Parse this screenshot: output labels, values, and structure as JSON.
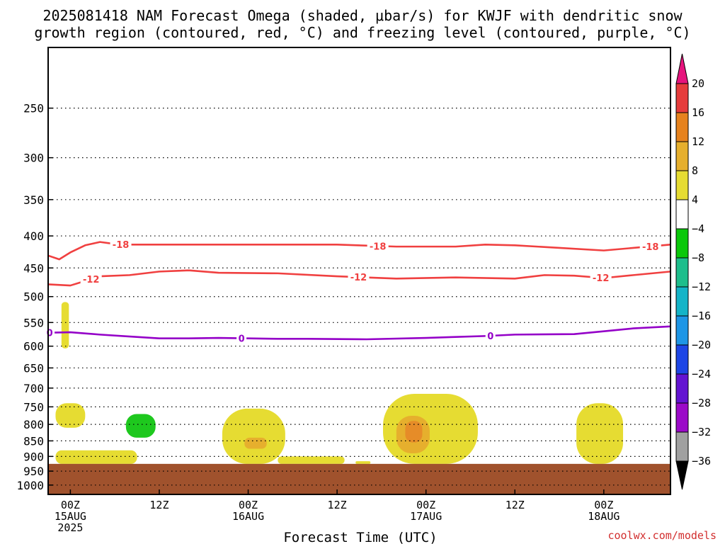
{
  "title_line1": "2025081418 NAM Forecast Omega (shaded, μbar/s) for KWJF with dendritic snow",
  "title_line2": "growth region (contoured, red, °C) and freezing level (contoured, purple, °C)",
  "xlabel": "Forecast Time (UTC)",
  "credit": "coolwx.com/models",
  "colors": {
    "ground": "#a0522d",
    "dgz": "#f04040",
    "freezing": "#9400c8",
    "yellow": "#e6dc32",
    "gold": "#e6af2d",
    "orange": "#e68c28",
    "green": "#1ec81e"
  },
  "chart_data": {
    "type": "time-height cross-section",
    "x_ticks": [
      {
        "hour": 0,
        "lines": [
          "00Z",
          "15AUG",
          "2025"
        ]
      },
      {
        "hour": 12,
        "lines": [
          "12Z"
        ]
      },
      {
        "hour": 24,
        "lines": [
          "00Z",
          "16AUG"
        ]
      },
      {
        "hour": 36,
        "lines": [
          "12Z"
        ]
      },
      {
        "hour": 48,
        "lines": [
          "00Z",
          "17AUG"
        ]
      },
      {
        "hour": 60,
        "lines": [
          "12Z"
        ]
      },
      {
        "hour": 72,
        "lines": [
          "00Z",
          "18AUG"
        ]
      }
    ],
    "xlim_hours": [
      -3,
      81
    ],
    "y_ticks_hPa": [
      250,
      300,
      350,
      400,
      450,
      500,
      550,
      600,
      650,
      700,
      750,
      800,
      850,
      900,
      950,
      1000
    ],
    "ylim_hPa": [
      200,
      1035
    ],
    "y_scale": "log-pressure",
    "grid": "dotted",
    "surface_pressure_hPa": 925,
    "colorbar": {
      "ticks": [
        "20",
        "16",
        "12",
        "8",
        "4",
        "−4",
        "−8",
        "−12",
        "−16",
        "−20",
        "−24",
        "−28",
        "−32",
        "−36"
      ],
      "bins": [
        {
          "color": "#e63c3c"
        },
        {
          "color": "#e6821e"
        },
        {
          "color": "#e6af2d"
        },
        {
          "color": "#e6dc32"
        },
        {
          "color": "#ffffff"
        },
        {
          "color": "#0ac80a"
        },
        {
          "color": "#1ebe8c"
        },
        {
          "color": "#14b4c8"
        },
        {
          "color": "#1e96e6"
        },
        {
          "color": "#1e46e6"
        },
        {
          "color": "#6414d2"
        },
        {
          "color": "#9b0ac8"
        },
        {
          "color": "#a0a0a0"
        }
      ],
      "max_extend_color": "#e6147d",
      "min_extend_color": "#000000"
    },
    "contours": [
      {
        "label": "-18",
        "color_key": "dgz",
        "label_hours": [
          6.8,
          41.5,
          78.3
        ],
        "points": [
          [
            -3,
            430
          ],
          [
            -1.5,
            436
          ],
          [
            0,
            425
          ],
          [
            2,
            414
          ],
          [
            4,
            409
          ],
          [
            6,
            412
          ],
          [
            8,
            413
          ],
          [
            12,
            413
          ],
          [
            20,
            413
          ],
          [
            28,
            413
          ],
          [
            36,
            413
          ],
          [
            44,
            416
          ],
          [
            52,
            416
          ],
          [
            56,
            413
          ],
          [
            60,
            414
          ],
          [
            66,
            418
          ],
          [
            72,
            422
          ],
          [
            76,
            418
          ],
          [
            81,
            413
          ]
        ]
      },
      {
        "label": "-12",
        "color_key": "dgz",
        "label_hours": [
          2.8,
          38.9,
          71.6
        ],
        "points": [
          [
            -3,
            478
          ],
          [
            0,
            480
          ],
          [
            2,
            472
          ],
          [
            4,
            464
          ],
          [
            8,
            462
          ],
          [
            12,
            456
          ],
          [
            16,
            454
          ],
          [
            20,
            458
          ],
          [
            28,
            459
          ],
          [
            36,
            464
          ],
          [
            44,
            468
          ],
          [
            52,
            466
          ],
          [
            60,
            468
          ],
          [
            64,
            462
          ],
          [
            68,
            463
          ],
          [
            72,
            467
          ],
          [
            76,
            462
          ],
          [
            81,
            456
          ]
        ]
      },
      {
        "label": "0",
        "color_key": "freezing",
        "label_hours": [
          -2.8,
          23.1,
          56.7
        ],
        "points": [
          [
            -3,
            571
          ],
          [
            0,
            570
          ],
          [
            4,
            575
          ],
          [
            8,
            579
          ],
          [
            12,
            583
          ],
          [
            16,
            583
          ],
          [
            20,
            582
          ],
          [
            24,
            583
          ],
          [
            28,
            584
          ],
          [
            32,
            584
          ],
          [
            40,
            585
          ],
          [
            48,
            582
          ],
          [
            52,
            580
          ],
          [
            56,
            578
          ],
          [
            60,
            575
          ],
          [
            68,
            574
          ],
          [
            72,
            568
          ],
          [
            76,
            562
          ],
          [
            81,
            558
          ]
        ]
      }
    ],
    "shaded_regions": [
      {
        "color_key": "yellow",
        "hour_range": [
          -1.2,
          -0.2
        ],
        "hPa_range": [
          510,
          605
        ]
      },
      {
        "color_key": "yellow",
        "hour_range": [
          -2,
          2
        ],
        "hPa_range": [
          740,
          810
        ]
      },
      {
        "color_key": "green",
        "hour_range": [
          7.5,
          11.5
        ],
        "hPa_range": [
          770,
          840
        ]
      },
      {
        "color_key": "yellow",
        "hour_range": [
          -2,
          9
        ],
        "hPa_range": [
          880,
          925
        ]
      },
      {
        "color_key": "yellow",
        "hour_range": [
          20.5,
          29
        ],
        "hPa_range": [
          755,
          925
        ]
      },
      {
        "color_key": "gold",
        "hour_range": [
          23.5,
          26.5
        ],
        "hPa_range": [
          840,
          875
        ]
      },
      {
        "color_key": "yellow",
        "hour_range": [
          28,
          37
        ],
        "hPa_range": [
          900,
          925
        ]
      },
      {
        "color_key": "yellow",
        "hour_range": [
          38.5,
          40.5
        ],
        "hPa_range": [
          916,
          925
        ]
      },
      {
        "color_key": "yellow",
        "hour_range": [
          42.2,
          55
        ],
        "hPa_range": [
          715,
          925
        ]
      },
      {
        "color_key": "gold",
        "hour_range": [
          44,
          48.5
        ],
        "hPa_range": [
          775,
          890
        ]
      },
      {
        "color_key": "orange",
        "hour_range": [
          45.2,
          47.5
        ],
        "hPa_range": [
          790,
          855
        ]
      },
      {
        "color_key": "yellow",
        "hour_range": [
          68.3,
          74.6
        ],
        "hPa_range": [
          740,
          925
        ]
      }
    ]
  }
}
